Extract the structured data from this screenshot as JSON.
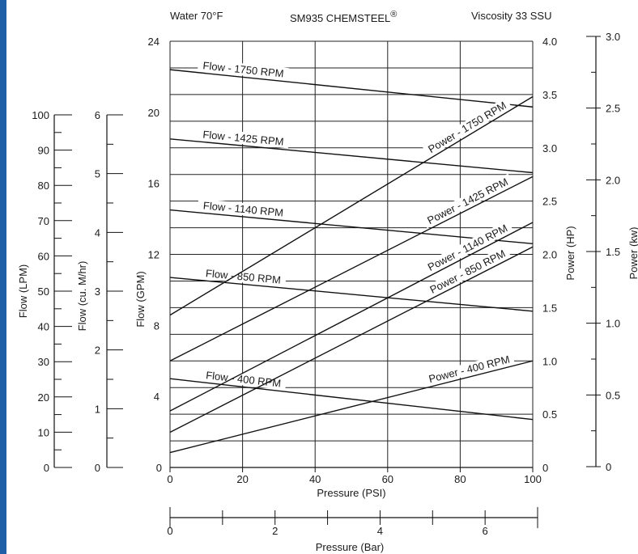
{
  "chart_data": {
    "type": "line",
    "header": {
      "left": "Water 70°F",
      "title": "SM935 CHEMSTEEL",
      "title_mark": "®",
      "right": "Viscosity 33 SSU"
    },
    "xlabel": "Pressure (PSI)",
    "xlim": [
      0,
      100
    ],
    "x_ticks": [
      0,
      20,
      40,
      60,
      80,
      100
    ],
    "x_tick_labels": [
      "0",
      "20",
      "40",
      "60",
      "80",
      "100"
    ],
    "x2label": "Pressure (Bar)",
    "x2lim": [
      0,
      7
    ],
    "x2_ticks": [
      0,
      2,
      4,
      6
    ],
    "x2_tick_labels": [
      "0",
      "2",
      "4",
      "6"
    ],
    "y_gpm": {
      "label": "Flow (GPM)",
      "lim": [
        0,
        24
      ],
      "ticks": [
        0,
        4,
        8,
        12,
        16,
        20,
        24
      ],
      "tick_labels": [
        "0",
        "4",
        "8",
        "12",
        "16",
        "20",
        "24"
      ]
    },
    "y_hp": {
      "label": "Power (HP)",
      "lim": [
        0,
        4
      ],
      "ticks": [
        0,
        0.5,
        1,
        1.5,
        2,
        2.5,
        3,
        3.5,
        4
      ],
      "tick_labels": [
        "0",
        "0.5",
        "1.0",
        "1.5",
        "2.0",
        "2.5",
        "3.0",
        "3.5",
        "4.0"
      ]
    },
    "y_lpm": {
      "label": "Flow (LPM)",
      "lim": [
        0,
        100
      ],
      "ticks": [
        0,
        10,
        20,
        30,
        40,
        50,
        60,
        70,
        80,
        90,
        100
      ],
      "tick_labels": [
        "0",
        "10",
        "20",
        "30",
        "40",
        "50",
        "60",
        "70",
        "80",
        "90",
        "100"
      ]
    },
    "y_m3hr": {
      "label": "Flow (cu. M/hr)",
      "lim": [
        0,
        6
      ],
      "ticks": [
        0,
        1,
        2,
        3,
        4,
        5,
        6
      ],
      "tick_labels": [
        "0",
        "1",
        "2",
        "3",
        "4",
        "5",
        "6"
      ]
    },
    "y_kw": {
      "label": "Power (kw)",
      "lim": [
        0,
        3
      ],
      "ticks": [
        0,
        0.5,
        1,
        1.5,
        2,
        2.5,
        3
      ],
      "tick_labels": [
        "0",
        "0.5",
        "1.0",
        "1.5",
        "2.0",
        "2.5",
        "3.0"
      ]
    },
    "flow_series": [
      {
        "name": "Flow - 1750 RPM",
        "x": [
          0,
          100
        ],
        "y_gpm": [
          22.4,
          20.3
        ]
      },
      {
        "name": "Flow - 1425 RPM",
        "x": [
          0,
          100
        ],
        "y_gpm": [
          18.5,
          16.6
        ]
      },
      {
        "name": "Flow - 1140 RPM",
        "x": [
          0,
          100
        ],
        "y_gpm": [
          14.5,
          12.6
        ]
      },
      {
        "name": "Flow - 850 RPM",
        "x": [
          0,
          100
        ],
        "y_gpm": [
          10.7,
          8.8
        ]
      },
      {
        "name": "Flow - 400 RPM",
        "x": [
          0,
          100
        ],
        "y_gpm": [
          5.0,
          2.7
        ]
      }
    ],
    "power_series": [
      {
        "name": "Power - 1750 RPM",
        "x": [
          0,
          100
        ],
        "y_hp": [
          1.43,
          3.48
        ]
      },
      {
        "name": "Power - 1425 RPM",
        "x": [
          0,
          100
        ],
        "y_hp": [
          1.0,
          2.73
        ]
      },
      {
        "name": "Power - 1140 RPM",
        "x": [
          0,
          100
        ],
        "y_hp": [
          0.53,
          2.3
        ]
      },
      {
        "name": "Power - 850 RPM",
        "x": [
          0,
          100
        ],
        "y_hp": [
          0.33,
          2.07
        ]
      },
      {
        "name": "Power - 400 RPM",
        "x": [
          0,
          100
        ],
        "y_hp": [
          0.14,
          1.0
        ]
      }
    ],
    "grid": true,
    "brand_color": "#1f5fa8"
  }
}
